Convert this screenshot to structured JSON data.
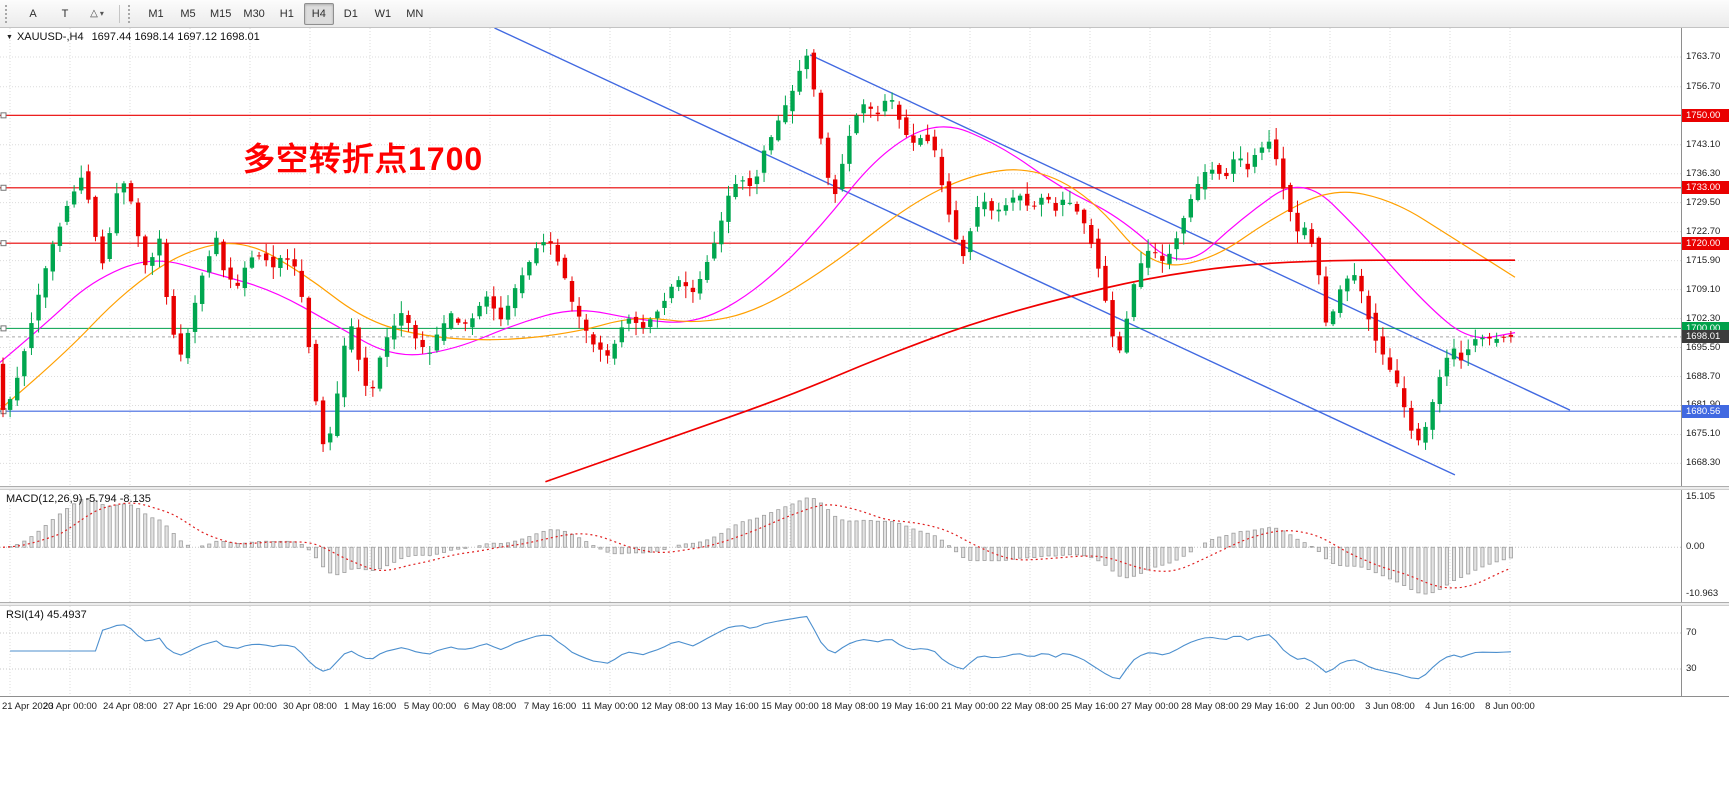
{
  "colors": {
    "up": "#00A64F",
    "down": "#E80000",
    "grid": "#DBDBDB",
    "trendline": "#4169E1",
    "macd_signal": "#E02020",
    "rsi_line": "#4C8FCE",
    "annotation": "#FF0000"
  },
  "icons": {
    "collapse": "▼",
    "shapes_tool": "△",
    "caret_down": "▾"
  },
  "toolbar": {
    "tools": [
      {
        "label": "A"
      },
      {
        "label": "T"
      }
    ],
    "timeframes": [
      "M1",
      "M5",
      "M15",
      "M30",
      "H1",
      "H4",
      "D1",
      "W1",
      "MN"
    ],
    "active_timeframe": "H4"
  },
  "quote": {
    "symbol": "XAUUSD-,H4",
    "ohlc": "1697.44 1698.14 1697.12 1698.01"
  },
  "annotation": {
    "text": "多空转折点1700",
    "color": "#FF0000"
  },
  "chart_data": {
    "type": "candlestick",
    "symbol": "XAUUSD-",
    "timeframe": "H4",
    "quote_ohlc": {
      "open": 1697.44,
      "high": 1698.14,
      "low": 1697.12,
      "close": 1698.01
    },
    "y_domain": [
      1663.0,
      1770.5
    ],
    "candle_count": 213,
    "last_close": 1698.01,
    "price_axis": {
      "ticks": [
        "1763.70",
        "1756.70",
        "1743.10",
        "1736.30",
        "1729.50",
        "1722.70",
        "1715.90",
        "1709.10",
        "1702.30",
        "1695.50",
        "1688.70",
        "1681.90",
        "1675.10",
        "1668.30"
      ],
      "levels": [
        {
          "value": 1750.0,
          "label": "1750.00",
          "color": "#E90000",
          "handle": true
        },
        {
          "value": 1733.0,
          "label": "1733.00",
          "color": "#E90000",
          "handle": true
        },
        {
          "value": 1720.0,
          "label": "1720.00",
          "color": "#E90000",
          "handle": true
        },
        {
          "value": 1700.0,
          "label": "1700.00",
          "color": "#00A14B",
          "handle": true
        },
        {
          "value": 1698.01,
          "label": "1698.01",
          "color": "#3C3C3C",
          "style": "dash"
        },
        {
          "value": 1680.56,
          "label": "1680.56",
          "color": "#4169E1",
          "handle": true
        }
      ]
    },
    "price_path": [
      [
        0.0,
        1691
      ],
      [
        0.006,
        1679
      ],
      [
        0.012,
        1686
      ],
      [
        0.02,
        1697
      ],
      [
        0.03,
        1710
      ],
      [
        0.04,
        1722
      ],
      [
        0.052,
        1733
      ],
      [
        0.058,
        1737
      ],
      [
        0.065,
        1723
      ],
      [
        0.072,
        1714
      ],
      [
        0.079,
        1731
      ],
      [
        0.086,
        1735
      ],
      [
        0.094,
        1722
      ],
      [
        0.1,
        1713
      ],
      [
        0.108,
        1722
      ],
      [
        0.115,
        1703
      ],
      [
        0.122,
        1693
      ],
      [
        0.13,
        1703
      ],
      [
        0.138,
        1714
      ],
      [
        0.146,
        1721
      ],
      [
        0.152,
        1713
      ],
      [
        0.16,
        1709
      ],
      [
        0.168,
        1716
      ],
      [
        0.176,
        1718
      ],
      [
        0.184,
        1714
      ],
      [
        0.192,
        1717
      ],
      [
        0.2,
        1713
      ],
      [
        0.206,
        1700
      ],
      [
        0.212,
        1684
      ],
      [
        0.218,
        1671
      ],
      [
        0.224,
        1678
      ],
      [
        0.23,
        1694
      ],
      [
        0.236,
        1701
      ],
      [
        0.242,
        1690
      ],
      [
        0.248,
        1683
      ],
      [
        0.254,
        1692
      ],
      [
        0.262,
        1700
      ],
      [
        0.27,
        1704
      ],
      [
        0.278,
        1698
      ],
      [
        0.286,
        1693
      ],
      [
        0.294,
        1699
      ],
      [
        0.302,
        1703
      ],
      [
        0.31,
        1700
      ],
      [
        0.318,
        1704
      ],
      [
        0.326,
        1708
      ],
      [
        0.334,
        1702
      ],
      [
        0.342,
        1707
      ],
      [
        0.35,
        1713
      ],
      [
        0.358,
        1719
      ],
      [
        0.366,
        1722
      ],
      [
        0.374,
        1715
      ],
      [
        0.382,
        1706
      ],
      [
        0.39,
        1700
      ],
      [
        0.398,
        1696
      ],
      [
        0.406,
        1693
      ],
      [
        0.414,
        1700
      ],
      [
        0.422,
        1703
      ],
      [
        0.43,
        1700
      ],
      [
        0.438,
        1704
      ],
      [
        0.446,
        1708
      ],
      [
        0.454,
        1712
      ],
      [
        0.462,
        1708
      ],
      [
        0.47,
        1714
      ],
      [
        0.478,
        1722
      ],
      [
        0.486,
        1731
      ],
      [
        0.494,
        1736
      ],
      [
        0.502,
        1733
      ],
      [
        0.508,
        1740
      ],
      [
        0.516,
        1746
      ],
      [
        0.524,
        1752
      ],
      [
        0.532,
        1760
      ],
      [
        0.538,
        1765
      ],
      [
        0.544,
        1752
      ],
      [
        0.55,
        1737
      ],
      [
        0.556,
        1731
      ],
      [
        0.562,
        1740
      ],
      [
        0.568,
        1748
      ],
      [
        0.576,
        1753
      ],
      [
        0.584,
        1750
      ],
      [
        0.592,
        1755
      ],
      [
        0.6,
        1748
      ],
      [
        0.608,
        1743
      ],
      [
        0.616,
        1746
      ],
      [
        0.624,
        1740
      ],
      [
        0.63,
        1730
      ],
      [
        0.636,
        1722
      ],
      [
        0.642,
        1717
      ],
      [
        0.648,
        1726
      ],
      [
        0.654,
        1731
      ],
      [
        0.662,
        1726
      ],
      [
        0.67,
        1729
      ],
      [
        0.678,
        1732
      ],
      [
        0.686,
        1727
      ],
      [
        0.694,
        1731
      ],
      [
        0.702,
        1728
      ],
      [
        0.71,
        1731
      ],
      [
        0.718,
        1727
      ],
      [
        0.726,
        1721
      ],
      [
        0.734,
        1710
      ],
      [
        0.74,
        1699
      ],
      [
        0.746,
        1694
      ],
      [
        0.752,
        1706
      ],
      [
        0.758,
        1714
      ],
      [
        0.766,
        1719
      ],
      [
        0.774,
        1715
      ],
      [
        0.782,
        1721
      ],
      [
        0.79,
        1728
      ],
      [
        0.798,
        1734
      ],
      [
        0.806,
        1738
      ],
      [
        0.814,
        1735
      ],
      [
        0.822,
        1740
      ],
      [
        0.83,
        1738
      ],
      [
        0.838,
        1742
      ],
      [
        0.846,
        1744
      ],
      [
        0.852,
        1736
      ],
      [
        0.858,
        1727
      ],
      [
        0.864,
        1722
      ],
      [
        0.87,
        1725
      ],
      [
        0.876,
        1715
      ],
      [
        0.882,
        1701
      ],
      [
        0.888,
        1705
      ],
      [
        0.894,
        1711
      ],
      [
        0.9,
        1713
      ],
      [
        0.906,
        1708
      ],
      [
        0.912,
        1701
      ],
      [
        0.918,
        1695
      ],
      [
        0.924,
        1690
      ],
      [
        0.93,
        1686
      ],
      [
        0.936,
        1679
      ],
      [
        0.942,
        1673
      ],
      [
        0.948,
        1676
      ],
      [
        0.954,
        1684
      ],
      [
        0.96,
        1691
      ],
      [
        0.966,
        1695
      ],
      [
        0.972,
        1693
      ],
      [
        0.978,
        1696
      ],
      [
        0.984,
        1699
      ],
      [
        0.99,
        1697
      ],
      [
        1.0,
        1698
      ]
    ],
    "moving_averages": [
      {
        "name": "ma-fast-magenta",
        "color": "#FF00FF",
        "width": 1.2,
        "points": [
          [
            0.0,
            1692
          ],
          [
            0.03,
            1701
          ],
          [
            0.06,
            1711
          ],
          [
            0.1,
            1717
          ],
          [
            0.14,
            1713
          ],
          [
            0.18,
            1709
          ],
          [
            0.22,
            1701
          ],
          [
            0.26,
            1693
          ],
          [
            0.3,
            1695
          ],
          [
            0.34,
            1701
          ],
          [
            0.38,
            1705
          ],
          [
            0.42,
            1702
          ],
          [
            0.46,
            1701
          ],
          [
            0.5,
            1709
          ],
          [
            0.54,
            1723
          ],
          [
            0.58,
            1741
          ],
          [
            0.62,
            1749
          ],
          [
            0.66,
            1743
          ],
          [
            0.7,
            1733
          ],
          [
            0.74,
            1726
          ],
          [
            0.78,
            1713
          ],
          [
            0.82,
            1726
          ],
          [
            0.86,
            1736
          ],
          [
            0.9,
            1722
          ],
          [
            0.94,
            1706
          ],
          [
            0.97,
            1697
          ],
          [
            1.0,
            1699
          ]
        ]
      },
      {
        "name": "ma-mid-orange",
        "color": "#FFA000",
        "width": 1.2,
        "points": [
          [
            0.0,
            1681
          ],
          [
            0.04,
            1693
          ],
          [
            0.08,
            1708
          ],
          [
            0.12,
            1718
          ],
          [
            0.16,
            1721
          ],
          [
            0.2,
            1713
          ],
          [
            0.24,
            1702
          ],
          [
            0.28,
            1698
          ],
          [
            0.33,
            1697
          ],
          [
            0.38,
            1699
          ],
          [
            0.42,
            1703
          ],
          [
            0.46,
            1701
          ],
          [
            0.5,
            1704
          ],
          [
            0.55,
            1715
          ],
          [
            0.6,
            1729
          ],
          [
            0.64,
            1736
          ],
          [
            0.68,
            1738
          ],
          [
            0.72,
            1731
          ],
          [
            0.76,
            1714
          ],
          [
            0.8,
            1716
          ],
          [
            0.84,
            1726
          ],
          [
            0.88,
            1733
          ],
          [
            0.92,
            1730
          ],
          [
            0.96,
            1721
          ],
          [
            1.0,
            1712
          ]
        ]
      },
      {
        "name": "ma-slow-red",
        "color": "#F00000",
        "width": 1.7,
        "points": [
          [
            0.36,
            1664
          ],
          [
            0.44,
            1674
          ],
          [
            0.52,
            1684
          ],
          [
            0.58,
            1693
          ],
          [
            0.64,
            1701
          ],
          [
            0.7,
            1707
          ],
          [
            0.76,
            1712
          ],
          [
            0.82,
            1715
          ],
          [
            0.88,
            1716
          ],
          [
            0.94,
            1716
          ],
          [
            1.0,
            1716
          ]
        ]
      }
    ],
    "trendlines": [
      {
        "x1": 0.294,
        "p1": 1770.5,
        "x2": 0.865,
        "p2": 1665.6
      },
      {
        "x1": 0.4816,
        "p1": 1764.2,
        "x2": 0.9334,
        "p2": 1680.8
      }
    ],
    "macd": {
      "title": "MACD(12,26,9) -5.794 -8.135",
      "fast": 12,
      "slow": 26,
      "signal": 9,
      "scale_max": "15.105",
      "scale_zero": "0.00",
      "scale_min": "-10.963"
    },
    "rsi": {
      "title": "RSI(14) 45.4937",
      "period": 14,
      "levels": [
        70,
        30
      ]
    },
    "time_labels": [
      "21 Apr 2020",
      "23 Apr 00:00",
      "24 Apr 08:00",
      "27 Apr 16:00",
      "29 Apr 00:00",
      "30 Apr 08:00",
      "1 May 16:00",
      "5 May 00:00",
      "6 May 08:00",
      "7 May 16:00",
      "11 May 00:00",
      "12 May 08:00",
      "13 May 16:00",
      "15 May 00:00",
      "18 May 08:00",
      "19 May 16:00",
      "21 May 00:00",
      "22 May 08:00",
      "25 May 16:00",
      "27 May 00:00",
      "28 May 08:00",
      "29 May 16:00",
      "2 Jun 00:00",
      "3 Jun 08:00",
      "4 Jun 16:00",
      "8 Jun 00:00"
    ]
  }
}
